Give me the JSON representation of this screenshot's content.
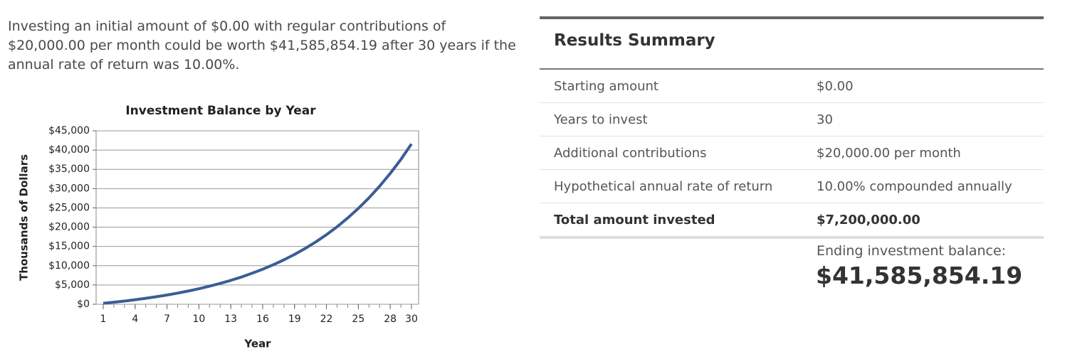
{
  "summary_text": "Investing an initial amount of $0.00 with regular contributions of $20,000.00 per month could be worth $41,585,854.19 after 30 years if the annual rate of return was 10.00%.",
  "chart_data": {
    "type": "line",
    "title": "Investment Balance by Year",
    "xlabel": "Year",
    "ylabel": "Thousands of Dollars",
    "x": [
      1,
      2,
      3,
      4,
      5,
      6,
      7,
      8,
      9,
      10,
      11,
      12,
      13,
      14,
      15,
      16,
      17,
      18,
      19,
      20,
      21,
      22,
      23,
      24,
      25,
      26,
      27,
      28,
      29,
      30
    ],
    "series": [
      {
        "color": "#3a5d96",
        "values": [
          253,
          531,
          837,
          1173,
          1543,
          1951,
          2399,
          2891,
          3433,
          4029,
          4685,
          5406,
          6200,
          7072,
          8032,
          9088,
          10250,
          11528,
          12933,
          14479,
          16180,
          18051,
          20109,
          22373,
          24863,
          27602,
          30615,
          33929,
          37575,
          41586
        ]
      }
    ],
    "xlim": [
      1,
      30
    ],
    "xticks": [
      1,
      4,
      7,
      10,
      13,
      16,
      19,
      22,
      25,
      28,
      30
    ],
    "ylim": [
      0,
      45000
    ],
    "yticks": [
      {
        "value": 0,
        "label": "$0"
      },
      {
        "value": 5000,
        "label": "$5,000"
      },
      {
        "value": 10000,
        "label": "$10,000"
      },
      {
        "value": 15000,
        "label": "$15,000"
      },
      {
        "value": 20000,
        "label": "$20,000"
      },
      {
        "value": 25000,
        "label": "$25,000"
      },
      {
        "value": 30000,
        "label": "$30,000"
      },
      {
        "value": 35000,
        "label": "$35,000"
      },
      {
        "value": 40000,
        "label": "$40,000"
      },
      {
        "value": 45000,
        "label": "$45,000"
      }
    ],
    "grid": true
  },
  "results": {
    "title": "Results Summary",
    "rows": [
      [
        "Starting amount",
        "$0.00"
      ],
      [
        "Years to invest",
        "30"
      ],
      [
        "Additional contributions",
        "$20,000.00 per month"
      ],
      [
        "Hypothetical annual rate of return",
        "10.00% compounded annually"
      ],
      [
        "Total amount invested",
        "$7,200,000.00"
      ]
    ],
    "ending_label": "Ending investment balance:",
    "ending_value": "$41,585,854.19"
  }
}
